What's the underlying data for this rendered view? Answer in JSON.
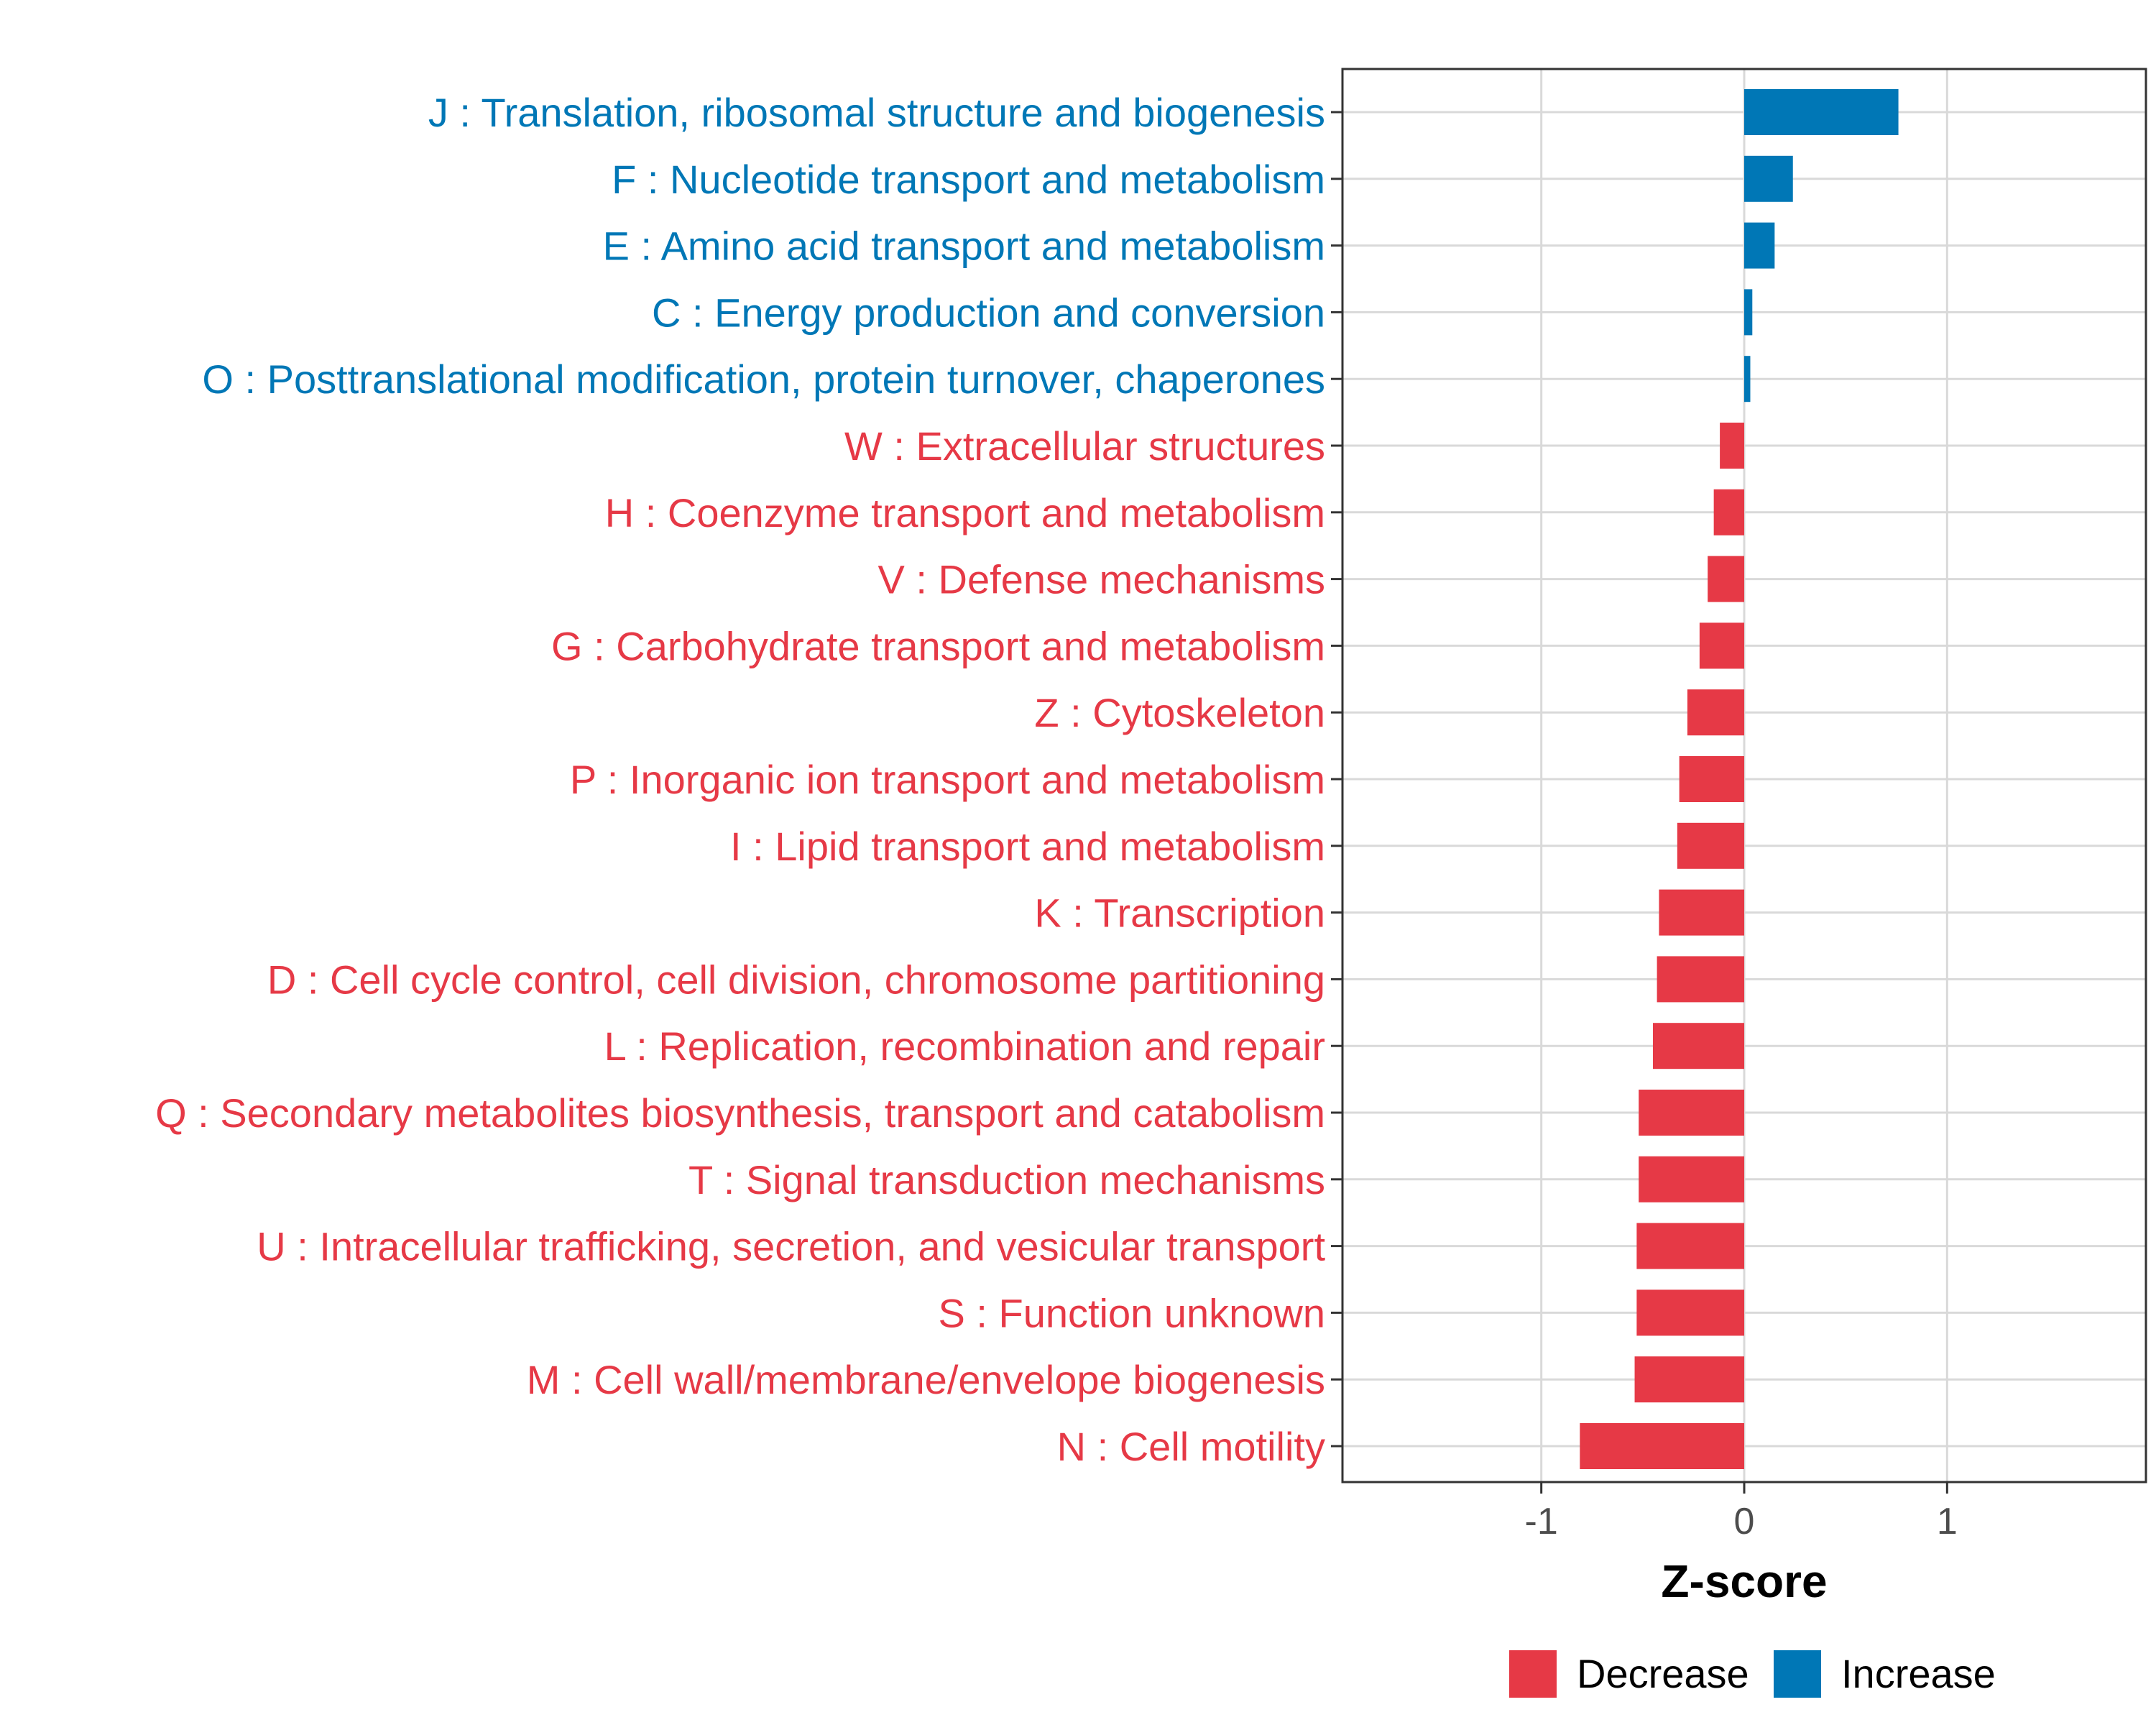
{
  "colors": {
    "decrease": "#E63946",
    "increase": "#0077B6",
    "grid": "#D9D9D9",
    "panel_border": "#333333",
    "tick_text": "#4D4D4D"
  },
  "chart_data": {
    "type": "bar",
    "orientation": "horizontal",
    "title": "",
    "xlabel": "Z-score",
    "ylabel": "",
    "xlim": [
      -1.98,
      1.98
    ],
    "x_ticks": [
      -1,
      0,
      1
    ],
    "x_tick_labels": [
      "-1",
      "0",
      "1"
    ],
    "grid": true,
    "legend_position": "bottom",
    "categories": [
      "J : Translation, ribosomal structure and biogenesis",
      "F : Nucleotide transport and metabolism",
      "E : Amino acid transport and metabolism",
      "C : Energy production and conversion",
      "O : Posttranslational modification, protein turnover, chaperones",
      "W : Extracellular structures",
      "H : Coenzyme transport and metabolism",
      "V : Defense mechanisms",
      "G : Carbohydrate transport and metabolism",
      "Z : Cytoskeleton",
      "P : Inorganic ion transport and metabolism",
      "I : Lipid transport and metabolism",
      "K : Transcription",
      "D : Cell cycle control, cell division, chromosome partitioning",
      "L : Replication, recombination and repair",
      "Q : Secondary metabolites biosynthesis, transport and catabolism",
      "T : Signal transduction mechanisms",
      "U : Intracellular trafficking, secretion, and vesicular transport",
      "S : Function unknown",
      "M : Cell wall/membrane/envelope biogenesis",
      "N : Cell motility"
    ],
    "values": [
      0.76,
      0.24,
      0.15,
      0.04,
      0.03,
      -0.12,
      -0.15,
      -0.18,
      -0.22,
      -0.28,
      -0.32,
      -0.33,
      -0.42,
      -0.43,
      -0.45,
      -0.52,
      -0.52,
      -0.53,
      -0.53,
      -0.54,
      -0.81
    ],
    "groups": [
      "Increase",
      "Increase",
      "Increase",
      "Increase",
      "Increase",
      "Decrease",
      "Decrease",
      "Decrease",
      "Decrease",
      "Decrease",
      "Decrease",
      "Decrease",
      "Decrease",
      "Decrease",
      "Decrease",
      "Decrease",
      "Decrease",
      "Decrease",
      "Decrease",
      "Decrease",
      "Decrease"
    ],
    "legend": [
      {
        "label": "Decrease",
        "color": "#E63946"
      },
      {
        "label": "Increase",
        "color": "#0077B6"
      }
    ]
  }
}
